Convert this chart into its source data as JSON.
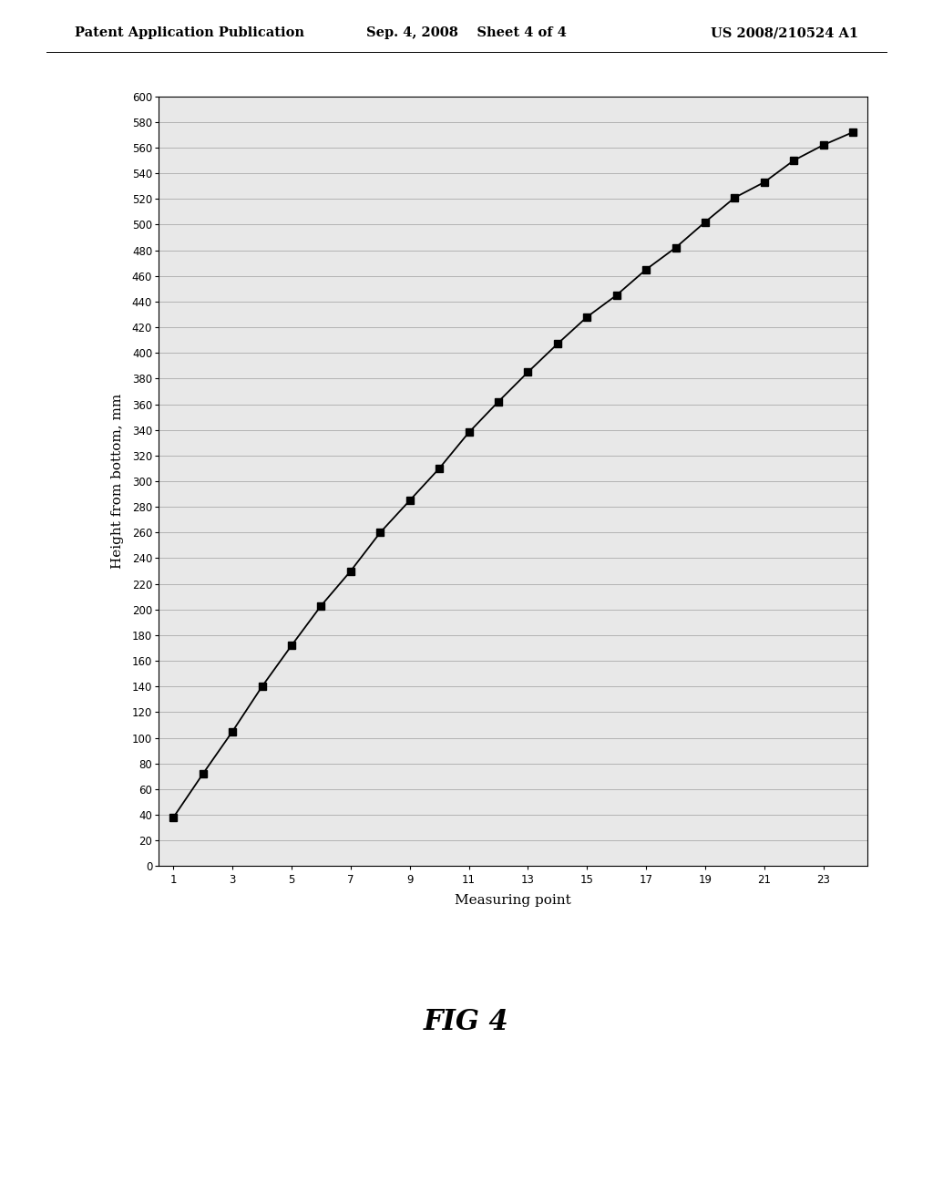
{
  "x": [
    1,
    2,
    3,
    4,
    5,
    6,
    7,
    8,
    9,
    10,
    11,
    12,
    13,
    14,
    15,
    16,
    17,
    18,
    19,
    20,
    21,
    22,
    23,
    24
  ],
  "y": [
    38,
    72,
    105,
    140,
    172,
    203,
    230,
    260,
    285,
    310,
    338,
    362,
    385,
    407,
    428,
    445,
    465,
    482,
    502,
    521,
    533,
    550,
    562,
    572
  ],
  "xlabel": "Measuring point",
  "ylabel": "Height from bottom, mm",
  "ylim": [
    0,
    600
  ],
  "xlim": [
    0.5,
    24.5
  ],
  "ytick_min": 0,
  "ytick_max": 600,
  "ytick_step": 20,
  "xtick_values": [
    1,
    3,
    5,
    7,
    9,
    11,
    13,
    15,
    17,
    19,
    21,
    23
  ],
  "line_color": "#000000",
  "marker": "s",
  "marker_size": 6,
  "marker_color": "#000000",
  "grid_color": "#aaaaaa",
  "background_color": "#e8e8e8",
  "fig_caption": "FIG 4",
  "header_left": "Patent Application Publication",
  "header_center": "Sep. 4, 2008    Sheet 4 of 4",
  "header_right": "US 2008/210524 A1"
}
